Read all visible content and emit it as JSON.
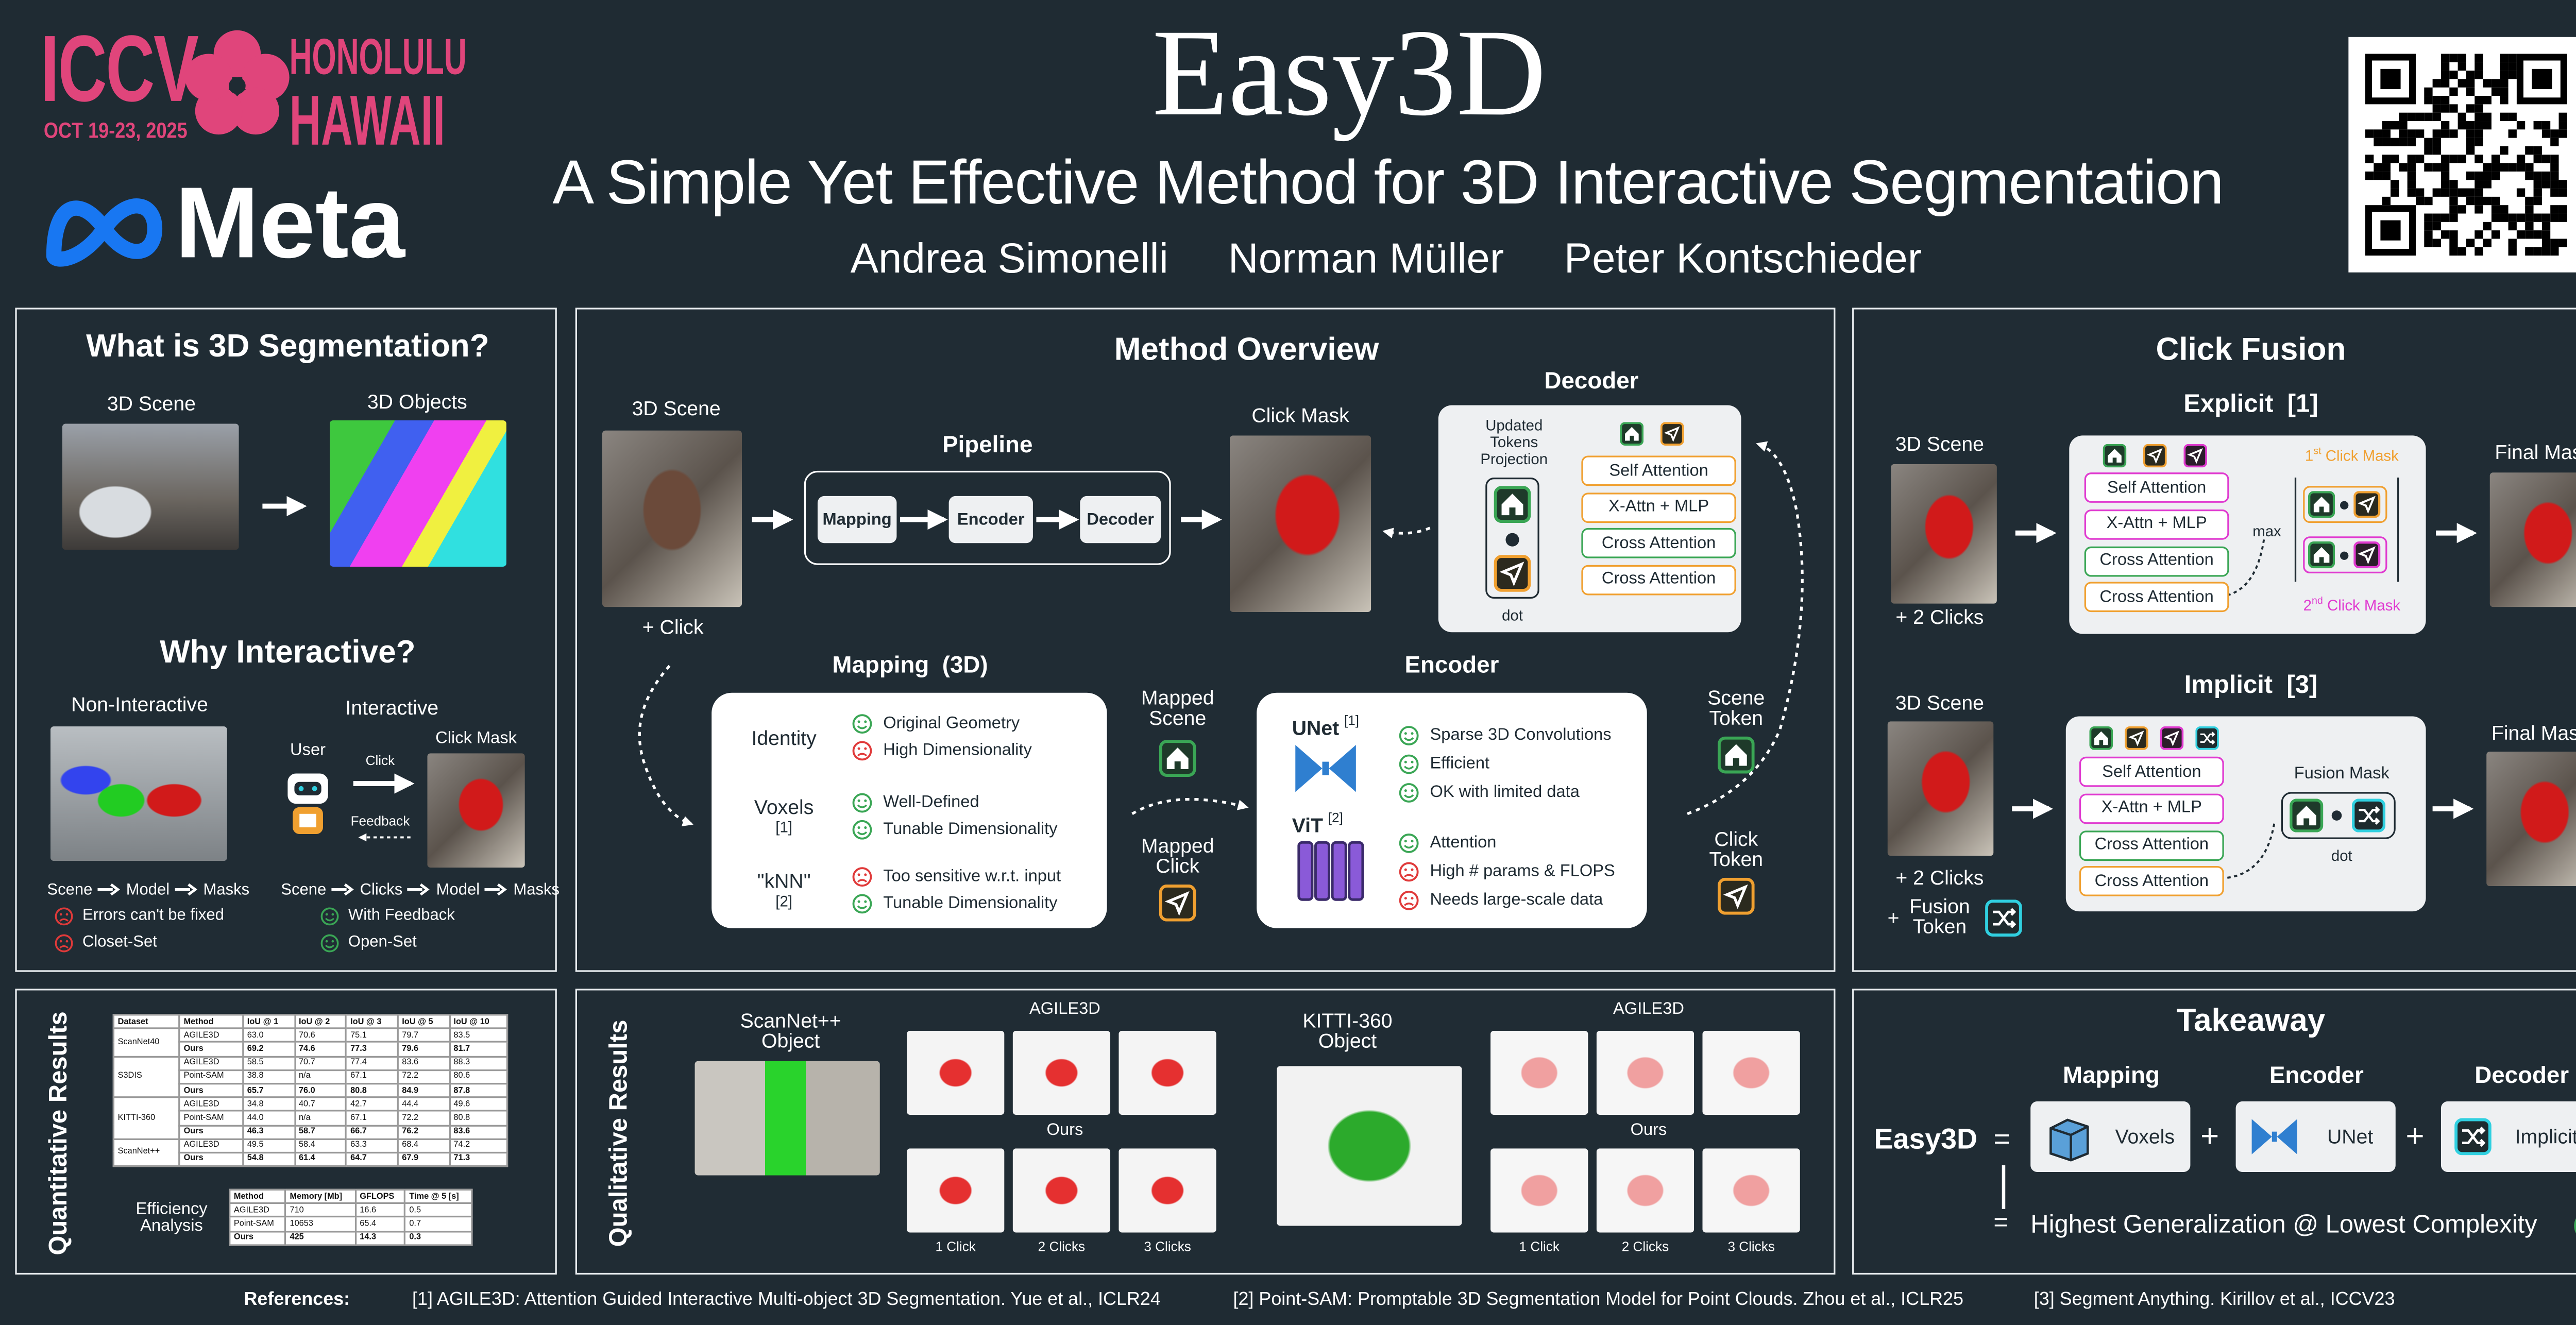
{
  "header": {
    "conference": {
      "name": "ICCV",
      "dates": "OCT 19-23, 2025",
      "city": "HONOLULU",
      "state": "HAWAII"
    },
    "organization": "Meta",
    "title": "Easy3D",
    "subtitle": "A Simple Yet Effective Method for 3D Interactive Segmentation",
    "authors": [
      "Andrea Simonelli",
      "Norman Müller",
      "Peter Kontschieder"
    ]
  },
  "segmentation": {
    "title": "What is 3D Segmentation?",
    "scene": "3D Scene",
    "objects": "3D Objects"
  },
  "interactive": {
    "title": "Why Interactive?",
    "non_interactive": {
      "label": "Non-Interactive",
      "flow": [
        "Scene",
        "Model",
        "Masks"
      ],
      "points": [
        {
          "text": "Errors can't be fixed",
          "positive": false
        },
        {
          "text": "Closet-Set",
          "positive": false
        }
      ]
    },
    "interactive": {
      "label": "Interactive",
      "user": "User",
      "click": "Click",
      "feedback": "Feedback",
      "click_mask": "Click Mask",
      "flow": [
        "Scene",
        "Clicks",
        "Model",
        "Masks"
      ],
      "points": [
        {
          "text": "With Feedback",
          "positive": true
        },
        {
          "text": "Open-Set",
          "positive": true
        }
      ]
    }
  },
  "method": {
    "title": "Method Overview",
    "scene": "3D Scene",
    "click": "+ Click",
    "pipeline": {
      "title": "Pipeline",
      "steps": [
        "Mapping",
        "Encoder",
        "Decoder"
      ]
    },
    "click_mask": "Click Mask",
    "decoder": {
      "title": "Decoder",
      "projection": "Updated Tokens Projection",
      "dot": "dot",
      "layers": [
        {
          "text": "Self Attention",
          "color": "#f0a030"
        },
        {
          "text": "X-Attn + MLP",
          "color": "#f0a030"
        },
        {
          "text": "Cross Attention",
          "color": "#3aa655"
        },
        {
          "text": "Cross Attention",
          "color": "#f0a030"
        }
      ]
    },
    "mapping": {
      "title": "Mapping",
      "title_note": "(3D)",
      "methods": [
        {
          "name": "Identity",
          "points": [
            {
              "text": "Original Geometry",
              "positive": true
            },
            {
              "text": "High Dimensionality",
              "positive": false
            }
          ]
        },
        {
          "name": "Voxels",
          "ref": "[1]",
          "points": [
            {
              "text": "Well-Defined",
              "positive": true
            },
            {
              "text": "Tunable Dimensionality",
              "positive": true
            }
          ]
        },
        {
          "name": "\"kNN\"",
          "ref": "[2]",
          "points": [
            {
              "text": "Too sensitive w.r.t. input",
              "positive": false
            },
            {
              "text": "Tunable Dimensionality",
              "positive": true
            }
          ]
        }
      ]
    },
    "encoder": {
      "title": "Encoder",
      "methods": [
        {
          "name": "UNet",
          "ref": "[1]",
          "points": [
            {
              "text": "Sparse 3D Convolutions",
              "positive": true
            },
            {
              "text": "Efficient",
              "positive": true
            },
            {
              "text": "OK with limited data",
              "positive": true
            }
          ]
        },
        {
          "name": "ViT",
          "ref": "[2]",
          "points": [
            {
              "text": "Attention",
              "positive": true
            },
            {
              "text": "High # params & FLOPS",
              "positive": false
            },
            {
              "text": "Needs large-scale data",
              "positive": false
            }
          ]
        }
      ]
    },
    "mapped_scene": "Mapped Scene",
    "mapped_click": "Mapped Click",
    "scene_token": "Scene Token",
    "click_token": "Click Token"
  },
  "click_fusion": {
    "title": "Click Fusion",
    "explicit": {
      "title": "Explicit",
      "ref": "[1]",
      "scene": "3D Scene",
      "clicks": "+ 2 Clicks",
      "final": "Final Mask",
      "max": "max",
      "first": {
        "ordinal": "1",
        "suffix": "st",
        "text": "Click Mask"
      },
      "second": {
        "ordinal": "2",
        "suffix": "nd",
        "text": "Click Mask"
      },
      "layers": [
        {
          "text": "Self Attention",
          "color": "#e03ad0"
        },
        {
          "text": "X-Attn + MLP",
          "color": "#e03ad0"
        },
        {
          "text": "Cross Attention",
          "color": "#3aa655"
        },
        {
          "text": "Cross Attention",
          "color": "#f0a030"
        }
      ]
    },
    "implicit": {
      "title": "Implicit",
      "ref": "[3]",
      "scene": "3D Scene",
      "clicks": "+ 2 Clicks",
      "plus": "+",
      "fusion_token": "Fusion Token",
      "fusion_mask": "Fusion Mask",
      "dot": "dot",
      "final": "Final Mask",
      "layers": [
        {
          "text": "Self Attention",
          "color": "#e03ad0"
        },
        {
          "text": "X-Attn + MLP",
          "color": "#e03ad0"
        },
        {
          "text": "Cross Attention",
          "color": "#3aa655"
        },
        {
          "text": "Cross Attention",
          "color": "#f0a030"
        }
      ]
    }
  },
  "quantitative": {
    "title": "Quantitative Results",
    "table": {
      "header": [
        "Dataset",
        "Method",
        "IoU @ 1",
        "IoU @ 2",
        "IoU @ 3",
        "IoU @ 5",
        "IoU @ 10"
      ],
      "groups": [
        {
          "dataset": "ScanNet40",
          "rows": [
            [
              "AGILE3D",
              "63.0",
              "70.6",
              "75.1",
              "79.7",
              "83.5"
            ],
            [
              "Ours",
              "69.2",
              "74.6",
              "77.3",
              "79.6",
              "81.7"
            ]
          ]
        },
        {
          "dataset": "S3DIS",
          "rows": [
            [
              "AGILE3D",
              "58.5",
              "70.7",
              "77.4",
              "83.6",
              "88.3"
            ],
            [
              "Point-SAM",
              "38.8",
              "n/a",
              "67.1",
              "72.2",
              "80.6"
            ],
            [
              "Ours",
              "65.7",
              "76.0",
              "80.8",
              "84.9",
              "87.8"
            ]
          ]
        },
        {
          "dataset": "KITTI-360",
          "rows": [
            [
              "AGILE3D",
              "34.8",
              "40.7",
              "42.7",
              "44.4",
              "49.6"
            ],
            [
              "Point-SAM",
              "44.0",
              "n/a",
              "67.1",
              "72.2",
              "80.8"
            ],
            [
              "Ours",
              "46.3",
              "58.7",
              "66.7",
              "76.2",
              "83.6"
            ]
          ]
        },
        {
          "dataset": "ScanNet++",
          "rows": [
            [
              "AGILE3D",
              "49.5",
              "58.4",
              "63.3",
              "68.4",
              "74.2"
            ],
            [
              "Ours",
              "54.8",
              "61.4",
              "64.7",
              "67.9",
              "71.3"
            ]
          ]
        }
      ]
    },
    "efficiency": {
      "title": "Efficiency Analysis",
      "header": [
        "Method",
        "Memory [Mb]",
        "GFLOPS",
        "Time @ 5 [s]"
      ],
      "rows": [
        [
          "AGILE3D",
          "710",
          "16.6",
          "0.5"
        ],
        [
          "Point-SAM",
          "10653",
          "65.4",
          "0.7"
        ],
        [
          "Ours",
          "425",
          "14.3",
          "0.3"
        ]
      ]
    }
  },
  "qualitative": {
    "title": "Qualitative Results",
    "scannet": {
      "label": "ScanNet++ Object",
      "baseline": "AGILE3D",
      "ours": "Ours",
      "clicks": [
        "1 Click",
        "2 Clicks",
        "3 Clicks"
      ]
    },
    "kitti": {
      "label": "KITTI-360 Object",
      "baseline": "AGILE3D",
      "ours": "Ours",
      "clicks": [
        "1 Click",
        "2 Clicks",
        "3 Clicks"
      ]
    }
  },
  "takeaway": {
    "title": "Takeaway",
    "method": "Easy3D",
    "equals": "=",
    "plus": "+",
    "items": [
      {
        "head": "Mapping",
        "label": "Voxels"
      },
      {
        "head": "Encoder",
        "label": "UNet"
      },
      {
        "head": "Decoder",
        "label": "Implicit Fusion"
      }
    ],
    "conclusion": "Highest Generalization @ Lowest Complexity"
  },
  "references": {
    "label": "References:",
    "items": [
      "[1] AGILE3D: Attention Guided Interactive Multi-object 3D Segmentation. Yue et al., ICLR24",
      "[2] Point-SAM: Promptable 3D Segmentation Model for Point Clouds. Zhou et al., ICLR25",
      "[3] Segment Anything. Kirillov et al., ICCV23"
    ]
  }
}
